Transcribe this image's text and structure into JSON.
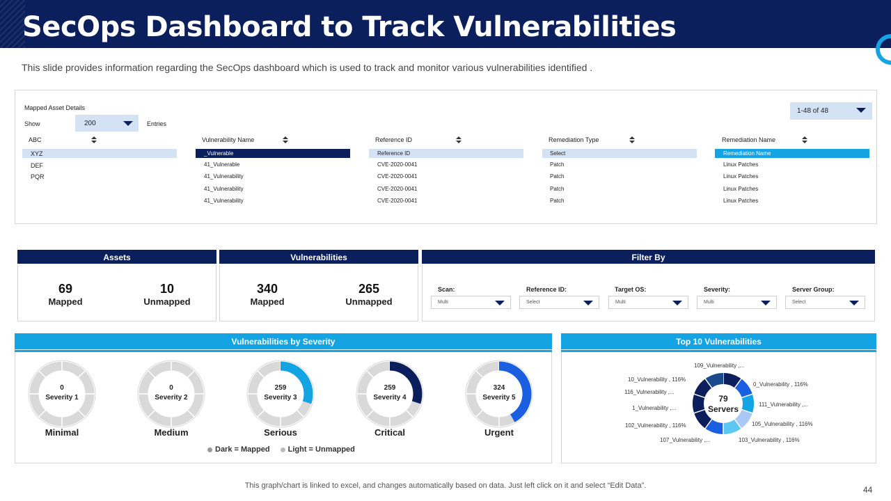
{
  "header": {
    "title": "SecOps Dashboard to Track Vulnerabilities",
    "subtitle": "This slide provides information regarding the SecOps dashboard which is used to track and monitor various vulnerabilities identified ."
  },
  "asset_table": {
    "title": "Mapped Asset Details",
    "show_label": "Show",
    "entries_value": "200",
    "entries_label": "Entries",
    "pagination": "1-48 of 48",
    "assets": [
      "ABC",
      "XYZ",
      "DEF",
      "PQR"
    ],
    "columns": [
      {
        "header": "Vulnerability Name",
        "selected": "_Vulnerable",
        "values": [
          "41_Vulnerable",
          "41_Vulnerability",
          "41_Vulnerability",
          "41_Vulnerability"
        ]
      },
      {
        "header": "Reference ID",
        "selected": "Reference ID",
        "values": [
          "CVE-2020-0041",
          "CVE-2020-0041",
          "CVE-2020-0041",
          "CVE-2020-0041"
        ]
      },
      {
        "header": "Remediation Type",
        "selected": "Select",
        "values": [
          "Patch",
          "Patch",
          "Patch",
          "Patch"
        ]
      },
      {
        "header": "Remediation Name",
        "selected": "Remediation Name",
        "values": [
          "Linux Patches",
          "Linux Patches",
          "Linux Patches",
          "Linux Patches"
        ]
      }
    ]
  },
  "assets_card": {
    "title": "Assets",
    "mapped_value": "69",
    "mapped_label": "Mapped",
    "unmapped_value": "10",
    "unmapped_label": "Unmapped"
  },
  "vuln_card": {
    "title": "Vulnerabilities",
    "mapped_value": "340",
    "mapped_label": "Mapped",
    "unmapped_value": "265",
    "unmapped_label": "Unmapped"
  },
  "filter": {
    "title": "Filter By",
    "fields": [
      {
        "label": "Scan:",
        "value": "Multi"
      },
      {
        "label": "Reference ID:",
        "value": "Select"
      },
      {
        "label": "Target OS:",
        "value": "Multi"
      },
      {
        "label": "Severity:",
        "value": "Multi"
      },
      {
        "label": "Server Group:",
        "value": "Select"
      }
    ]
  },
  "severity": {
    "title": "Vulnerabilities by Severity",
    "legend_dark": "Dark = Mapped",
    "legend_light": "Light = Unmapped",
    "colors": {
      "light": "#d9d9d9",
      "sev3": "#14a3e3",
      "sev4": "#0b1f5c",
      "sev5": "#1a5fe0"
    },
    "donuts": [
      {
        "count": "0",
        "name": "Severity 1",
        "label": "Minimal",
        "mapped_fraction": 0,
        "color": "#d9d9d9"
      },
      {
        "count": "0",
        "name": "Severity 2",
        "label": "Medium",
        "mapped_fraction": 0,
        "color": "#d9d9d9"
      },
      {
        "count": "259",
        "name": "Severity 3",
        "label": "Serious",
        "mapped_fraction": 0.3,
        "color": "#14a3e3"
      },
      {
        "count": "259",
        "name": "Severity 4",
        "label": "Critical",
        "mapped_fraction": 0.3,
        "color": "#0b1f5c"
      },
      {
        "count": "324",
        "name": "Severity 5",
        "label": "Urgent",
        "mapped_fraction": 0.42,
        "color": "#1a5fe0"
      }
    ]
  },
  "top10": {
    "title": "Top 10 Vulnerabilities",
    "center_value": "79",
    "center_label": "Servers",
    "segment_colors": [
      "#0b1f5c",
      "#1a5fe0",
      "#14a3e3",
      "#a9c8f5",
      "#5cc7f2",
      "#1a5fe0",
      "#0b1f5c",
      "#0b1f5c",
      "#0b1f5c",
      "#1a4a8c"
    ],
    "labels": [
      "109_Vulnerability ,...",
      "0_Vulnerability , 116%",
      "111_Vulnerability ,...",
      "105_Vulnerability , 116%",
      "103_Vulnerability , 116%",
      "107_Vulnerability ,...",
      "102_Vulnerability , 116%",
      "1_Vulnerability ,...",
      "116_Vulnerability ,...",
      "10_Vulnerability , 116%"
    ]
  },
  "footer": {
    "note": "This graph/chart is linked to excel, and changes automatically based on data. Just left click on it and select “Edit Data”.",
    "page_number": "44"
  }
}
